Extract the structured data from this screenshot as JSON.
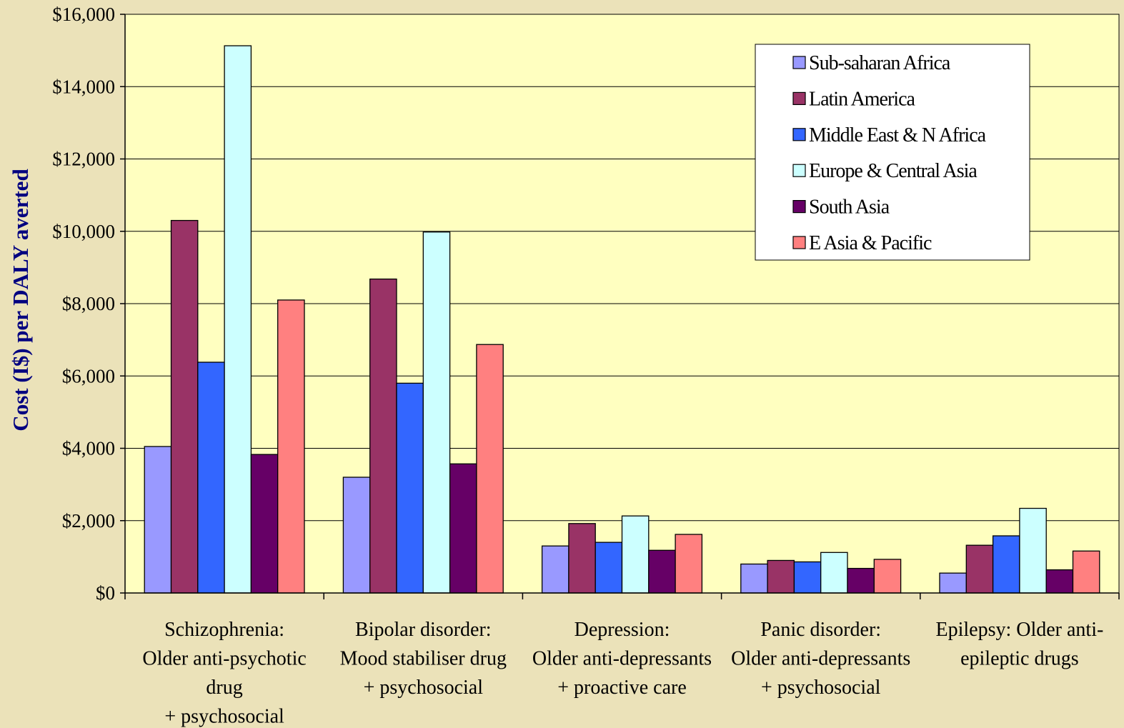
{
  "chart_data": {
    "type": "bar",
    "title": "",
    "xlabel": "",
    "ylabel": "Cost (I$) per DALY averted",
    "ylim": [
      0,
      16000
    ],
    "yticks": [
      0,
      2000,
      4000,
      6000,
      8000,
      10000,
      12000,
      14000,
      16000
    ],
    "ytick_labels": [
      "$0",
      "$2,000",
      "$4,000",
      "$6,000",
      "$8,000",
      "$10,000",
      "$12,000",
      "$14,000",
      "$16,000"
    ],
    "grid": true,
    "legend_position": "top-right",
    "categories": [
      [
        "Schizophrenia:",
        "Older anti-psychotic",
        "drug",
        "+ psychosocial"
      ],
      [
        "Bipolar disorder:",
        "Mood stabiliser drug",
        "+ psychosocial"
      ],
      [
        "Depression:",
        "Older anti-depressants",
        "+ proactive care"
      ],
      [
        "Panic disorder:",
        "Older anti-depressants",
        "+ psychosocial"
      ],
      [
        "Epilepsy: Older anti-",
        "epileptic drugs"
      ]
    ],
    "series": [
      {
        "name": "Sub-saharan Africa",
        "color": "#9999ff",
        "values": [
          4050,
          3200,
          1300,
          800,
          550
        ]
      },
      {
        "name": "Latin America",
        "color": "#993366",
        "values": [
          10300,
          8680,
          1920,
          900,
          1320
        ]
      },
      {
        "name": "Middle East & N Africa",
        "color": "#3366ff",
        "values": [
          6380,
          5800,
          1400,
          860,
          1580
        ]
      },
      {
        "name": "Europe & Central Asia",
        "color": "#ccffff",
        "values": [
          15130,
          9980,
          2130,
          1120,
          2340
        ]
      },
      {
        "name": "South Asia",
        "color": "#660066",
        "values": [
          3830,
          3570,
          1180,
          680,
          640
        ]
      },
      {
        "name": "E Asia & Pacific",
        "color": "#ff8080",
        "values": [
          8100,
          6870,
          1620,
          930,
          1160
        ]
      }
    ]
  },
  "colors": {
    "plot_background": "#ffffc0",
    "page_background": "#ebe2b9",
    "ylabel": "#000080"
  }
}
